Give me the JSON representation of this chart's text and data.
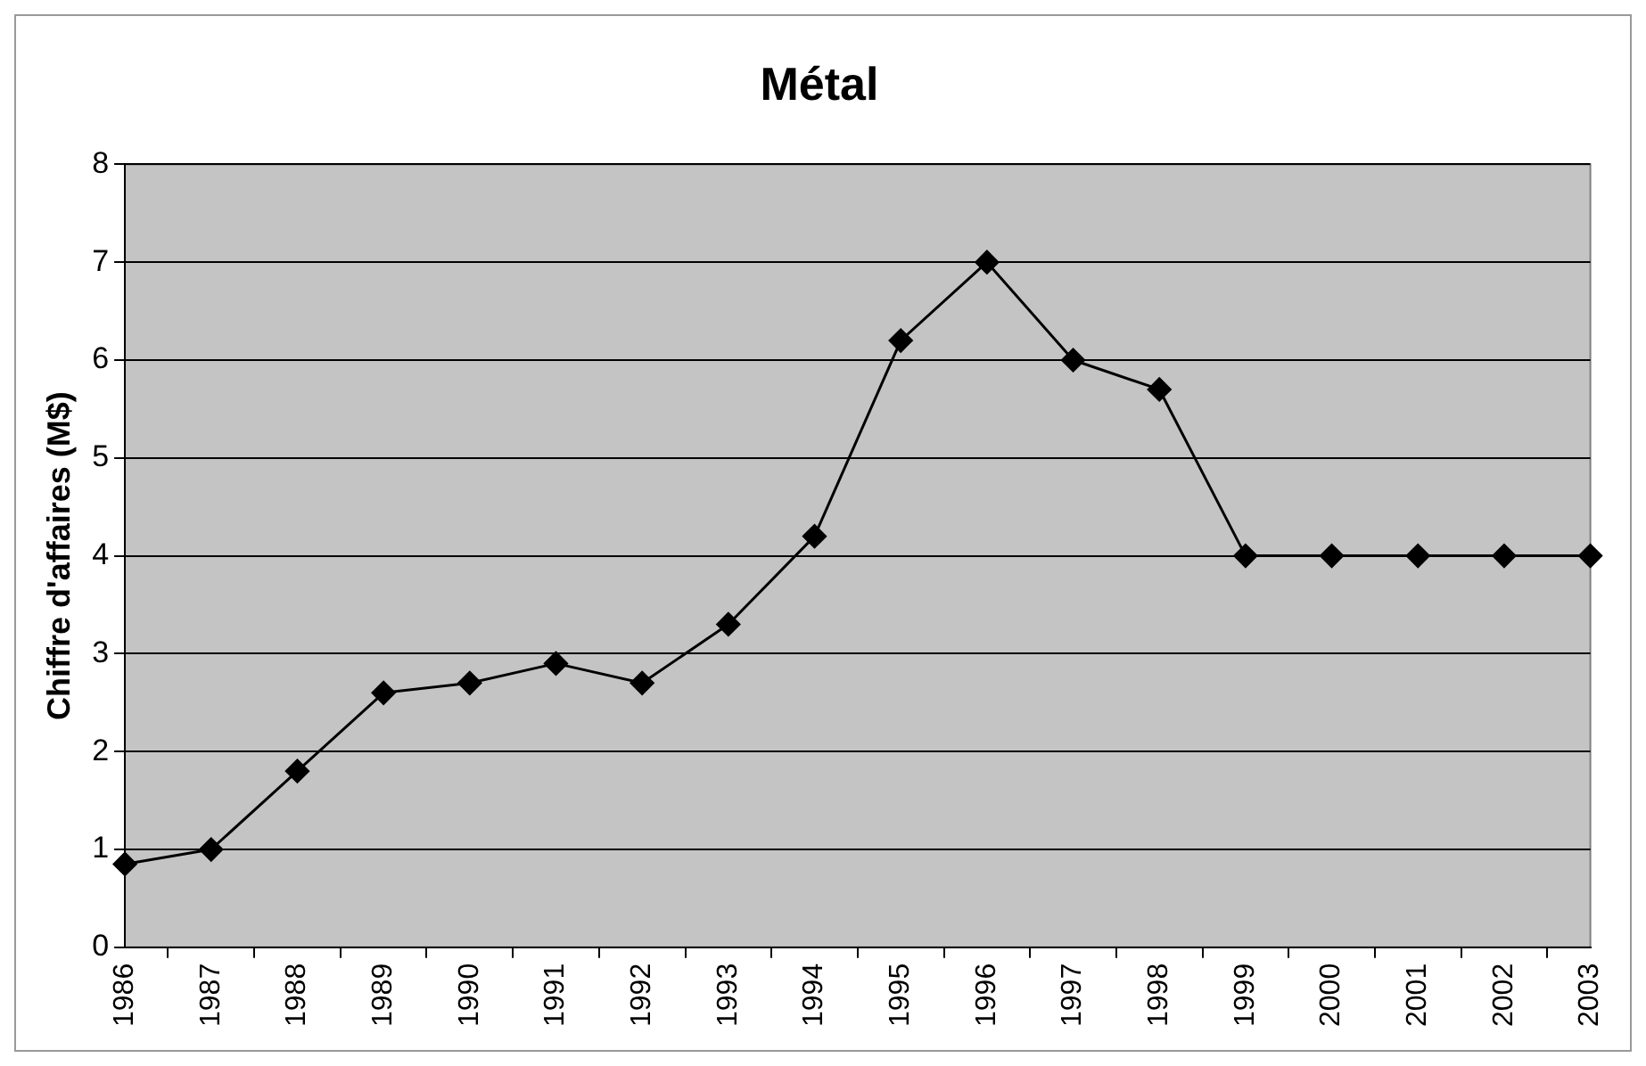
{
  "chart_data": {
    "type": "line",
    "title": "Métal",
    "ylabel": "Chiffre d'affaires (M$)",
    "categories": [
      "1986",
      "1987",
      "1988",
      "1989",
      "1990",
      "1991",
      "1992",
      "1993",
      "1994",
      "1995",
      "1996",
      "1997",
      "1998",
      "1999",
      "2000",
      "2001",
      "2002",
      "2003"
    ],
    "series": [
      {
        "color": "#000000",
        "values": [
          0.85,
          1.0,
          1.8,
          2.6,
          2.7,
          2.9,
          2.7,
          3.3,
          4.2,
          6.2,
          7.0,
          6.0,
          5.7,
          4,
          4,
          4,
          4,
          4
        ]
      }
    ],
    "ylim": [
      0,
      8
    ],
    "yticks": [
      0,
      1,
      2,
      3,
      4,
      5,
      6,
      7,
      8
    ],
    "grid": "y",
    "legend": false,
    "marker": "diamond",
    "line_style": "solid"
  }
}
